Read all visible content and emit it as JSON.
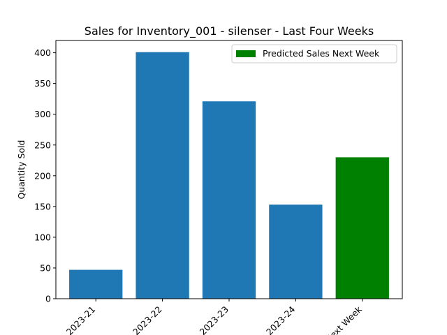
{
  "chart_data": {
    "type": "bar",
    "title": "Sales for Inventory_001 - silenser - Last Four Weeks",
    "xlabel": "",
    "ylabel": "Quantity Sold",
    "categories": [
      "2023-21",
      "2023-22",
      "2023-23",
      "2023-24",
      "Next Week"
    ],
    "values": [
      47,
      401,
      321,
      153,
      230
    ],
    "colors": [
      "#1f77b4",
      "#1f77b4",
      "#1f77b4",
      "#1f77b4",
      "#008000"
    ],
    "ylim": [
      0,
      420
    ],
    "yticks": [
      0,
      50,
      100,
      150,
      200,
      250,
      300,
      350,
      400
    ],
    "grid": false,
    "legend": {
      "placement": "top-right",
      "entries": [
        {
          "label": "Predicted Sales Next Week",
          "color": "#008000"
        }
      ]
    }
  }
}
